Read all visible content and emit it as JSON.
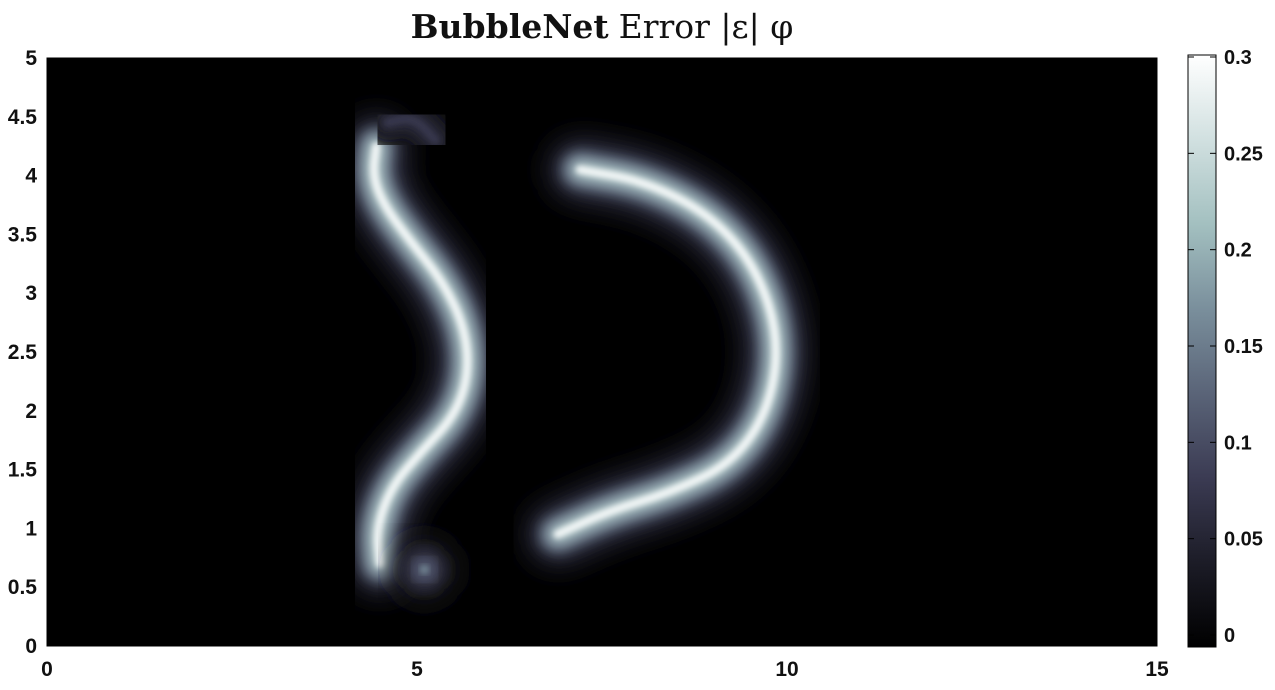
{
  "chart_data": {
    "type": "heatmap",
    "title_bold": "BubbleNet",
    "title_rest": "Error |ε| φ",
    "xlabel": "",
    "ylabel": "",
    "xlim": [
      0,
      15
    ],
    "ylim": [
      0,
      5
    ],
    "x_ticks": [
      "0",
      "5",
      "10",
      "15"
    ],
    "y_ticks": [
      "0",
      "0.5",
      "1",
      "1.5",
      "2",
      "2.5",
      "3",
      "3.5",
      "4",
      "4.5",
      "5"
    ],
    "colorbar": {
      "min": 0,
      "max": 0.3,
      "ticks": [
        "0",
        "0.05",
        "0.1",
        "0.15",
        "0.2",
        "0.25",
        "0.3"
      ],
      "colormap": "bone",
      "colors": [
        "#000000",
        "#1c1c27",
        "#3b3b53",
        "#5a6478",
        "#7a8f9c",
        "#a3c0c0",
        "#d1e0e0",
        "#ffffff"
      ]
    },
    "features": [
      {
        "name": "left interface",
        "points": [
          [
            4.45,
            4.25
          ],
          [
            4.4,
            4.0
          ],
          [
            4.55,
            3.75
          ],
          [
            4.9,
            3.45
          ],
          [
            5.35,
            3.1
          ],
          [
            5.65,
            2.7
          ],
          [
            5.7,
            2.3
          ],
          [
            5.5,
            1.95
          ],
          [
            5.05,
            1.65
          ],
          [
            4.65,
            1.35
          ],
          [
            4.45,
            1.0
          ],
          [
            4.5,
            0.7
          ]
        ],
        "peak_error": 0.29
      },
      {
        "name": "right interface",
        "points": [
          [
            7.2,
            4.05
          ],
          [
            8.1,
            3.95
          ],
          [
            9.0,
            3.65
          ],
          [
            9.6,
            3.2
          ],
          [
            9.9,
            2.6
          ],
          [
            9.75,
            2.0
          ],
          [
            9.25,
            1.55
          ],
          [
            8.4,
            1.3
          ],
          [
            7.6,
            1.15
          ],
          [
            6.9,
            0.95
          ]
        ],
        "peak_error": 0.29
      },
      {
        "name": "top-left blob",
        "points": [
          [
            4.6,
            4.45
          ],
          [
            4.95,
            4.5
          ],
          [
            5.25,
            4.3
          ]
        ],
        "peak_error": 0.08
      },
      {
        "name": "bottom blob",
        "points": [
          [
            5.1,
            0.65
          ]
        ],
        "peak_error": 0.16
      }
    ]
  }
}
